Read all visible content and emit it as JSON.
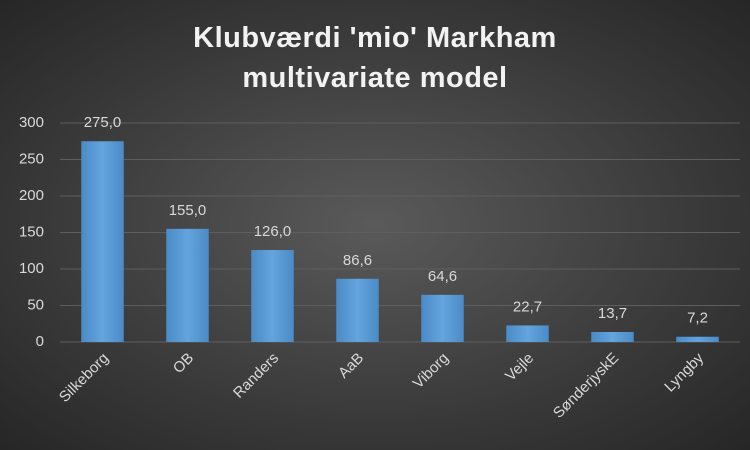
{
  "chart_data": {
    "type": "bar",
    "title": "Klubværdi 'mio' Markham multivariate model",
    "categories": [
      "Silkeborg",
      "OB",
      "Randers",
      "AaB",
      "Viborg",
      "Vejle",
      "SønderjyskE",
      "Lyngby"
    ],
    "values": [
      275,
      155,
      126,
      86.6,
      64.6,
      22.7,
      13.7,
      7.2
    ],
    "value_labels": [
      "275,0",
      "155,0",
      "126,0",
      "86,6",
      "64,6",
      "22,7",
      "13,7",
      "7,2"
    ],
    "color": "#5b9bd5",
    "ylim": [
      0,
      300
    ],
    "yticks": [
      0,
      50,
      100,
      150,
      200,
      250,
      300
    ],
    "grid": true
  }
}
